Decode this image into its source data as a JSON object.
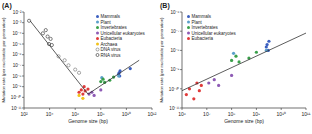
{
  "chart_data": [
    {
      "type": "scatter",
      "title": "(A)",
      "x_label": "Genome size (bp)",
      "y_label": "Mutation rate (per nucleotide per generation)",
      "log": true,
      "grid": false,
      "legend": "upper right",
      "xlim": [
        100,
        1000000000000
      ],
      "ylim": [
        1e-11,
        0.01
      ],
      "xticks": [
        {
          "value": 100,
          "label": "10²"
        },
        {
          "value": 10000,
          "label": "10⁴"
        },
        {
          "value": 1000000,
          "label": "10⁶"
        },
        {
          "value": 100000000,
          "label": "10⁸"
        },
        {
          "value": 10000000000,
          "label": "10¹⁰"
        },
        {
          "value": 1000000000000,
          "label": "10¹²"
        }
      ],
      "yticks": [
        {
          "value": 1e-11,
          "label": "10⁻¹¹"
        },
        {
          "value": 1e-10,
          "label": "10⁻¹⁰"
        },
        {
          "value": 1e-09,
          "label": "10⁻⁹"
        },
        {
          "value": 1e-08,
          "label": "10⁻⁸"
        },
        {
          "value": 1e-07,
          "label": "10⁻⁷"
        },
        {
          "value": 1e-06,
          "label": "10⁻⁶"
        },
        {
          "value": 1e-05,
          "label": "10⁻⁵"
        },
        {
          "value": 0.0001,
          "label": "10⁻⁴"
        },
        {
          "value": 0.001,
          "label": "10⁻³"
        },
        {
          "value": 0.01,
          "label": "10⁻²"
        }
      ],
      "series": [
        {
          "name": "Mammals",
          "color": "#3b5fc0",
          "marker": "circle",
          "x": [
            2500000000,
            2700000000,
            3000000000,
            3200000000,
            20000000000
          ],
          "values": [
            1.5e-08,
            2e-08,
            1e-08,
            3e-08,
            5e-08
          ]
        },
        {
          "name": "Plant",
          "color": "#5a9fc9",
          "marker": "circle",
          "x": [
            120000000,
            2500000000
          ],
          "values": [
            7e-09,
            1e-08
          ]
        },
        {
          "name": "Invertebrates",
          "color": "#3aa04a",
          "marker": "circle",
          "x": [
            100000000,
            150000000,
            200000000,
            500000000,
            1000000000
          ],
          "values": [
            3e-09,
            5e-09,
            2.5e-09,
            4e-09,
            8e-09
          ]
        },
        {
          "name": "Unicellular eukaryotes",
          "color": "#8e5bb5",
          "marker": "circle",
          "x": [
            12000000,
            20000000,
            30000000,
            100000000
          ],
          "values": [
            2e-10,
            3e-10,
            1.5e-10,
            5e-10
          ]
        },
        {
          "name": "Eubacteria",
          "color": "#e03a3a",
          "marker": "circle",
          "x": [
            2000000,
            3000000,
            4000000,
            5000000,
            6000000,
            10000000
          ],
          "values": [
            3e-10,
            5e-10,
            2e-10,
            1e-09,
            4e-10,
            6e-10
          ]
        },
        {
          "name": "Archaea",
          "color": "#f2c21b",
          "marker": "circle",
          "x": [
            2000000,
            4000000
          ],
          "values": [
            1.5e-10,
            8e-11
          ]
        },
        {
          "name": "DNA virus",
          "color": "#555555",
          "marker": "open_circle",
          "x": [
            50000,
            150000,
            300000,
            1000000,
            2000000
          ],
          "values": [
            7e-07,
            3e-07,
            1e-07,
            4e-08,
            2e-08
          ]
        },
        {
          "name": "RNA virus",
          "color": "#000000",
          "marker": "open_circle",
          "x": [
            250,
            3000,
            5000,
            7000,
            9000,
            12000,
            15000
          ],
          "values": [
            0.0015,
            0.0001,
            0.0002,
            5e-05,
            1e-05,
            3e-05,
            8e-06
          ]
        },
        {
          "type": "line",
          "color": "#333333",
          "line_style": "solid",
          "x": [
            300,
            10000000
          ],
          "values": [
            0.0015,
            2e-10
          ]
        },
        {
          "type": "line",
          "color": "#333333",
          "line_style": "solid",
          "x": [
            10000000,
            100000000000
          ],
          "values": [
            2e-10,
            3e-07
          ]
        }
      ]
    },
    {
      "type": "scatter",
      "title": "(B)",
      "x_label": "Genome size (bp)",
      "y_label": "Mutation rate (per nucleotide per generation)",
      "log": true,
      "grid": false,
      "legend": "upper left",
      "xlim": [
        1000000,
        100000000000
      ],
      "ylim": [
        1e-11,
        1e-06
      ],
      "xticks": [
        {
          "value": 1000000,
          "label": "10⁶"
        },
        {
          "value": 10000000,
          "label": "10⁷"
        },
        {
          "value": 100000000,
          "label": "10⁸"
        },
        {
          "value": 1000000000,
          "label": "10⁹"
        },
        {
          "value": 10000000000,
          "label": "10¹⁰"
        },
        {
          "value": 100000000000,
          "label": "10¹¹"
        }
      ],
      "yticks": [
        {
          "value": 1e-11,
          "label": "10⁻¹¹"
        },
        {
          "value": 1e-10,
          "label": "10⁻¹⁰"
        },
        {
          "value": 1e-09,
          "label": "10⁻⁹"
        },
        {
          "value": 1e-08,
          "label": "10⁻⁸"
        },
        {
          "value": 1e-07,
          "label": "10⁻⁷"
        },
        {
          "value": 1e-06,
          "label": "10⁻⁶"
        }
      ],
      "series": [
        {
          "name": "Mammals",
          "color": "#3b5fc0",
          "marker": "circle",
          "x": [
            2500000000,
            2700000000,
            3000000000,
            3200000000
          ],
          "values": [
            1.5e-08,
            2e-08,
            1e-08,
            3e-08
          ]
        },
        {
          "name": "Plant",
          "color": "#5a9fc9",
          "marker": "circle",
          "x": [
            120000000,
            2500000000
          ],
          "values": [
            7e-09,
            1e-08
          ]
        },
        {
          "name": "Invertebrates",
          "color": "#3aa04a",
          "marker": "circle",
          "x": [
            100000000,
            150000000,
            200000000,
            500000000,
            1000000000
          ],
          "values": [
            3e-09,
            5e-09,
            2.5e-09,
            4e-09,
            8e-09
          ]
        },
        {
          "name": "Unicellular eukaryotes",
          "color": "#8e5bb5",
          "marker": "circle",
          "x": [
            12000000,
            20000000,
            30000000,
            100000000
          ],
          "values": [
            2e-10,
            3e-10,
            1.5e-10,
            5e-10
          ]
        },
        {
          "name": "Eubacteria",
          "color": "#e03a3a",
          "marker": "circle",
          "x": [
            1500000,
            2000000,
            3000000,
            4000000,
            5000000,
            6000000
          ],
          "values": [
            5e-11,
            1e-10,
            3e-11,
            2e-10,
            8e-11,
            1.5e-10
          ]
        },
        {
          "type": "line",
          "color": "#333333",
          "line_style": "solid",
          "x": [
            1000000,
            100000000000
          ],
          "values": [
            8e-11,
            8e-08
          ]
        }
      ]
    }
  ]
}
